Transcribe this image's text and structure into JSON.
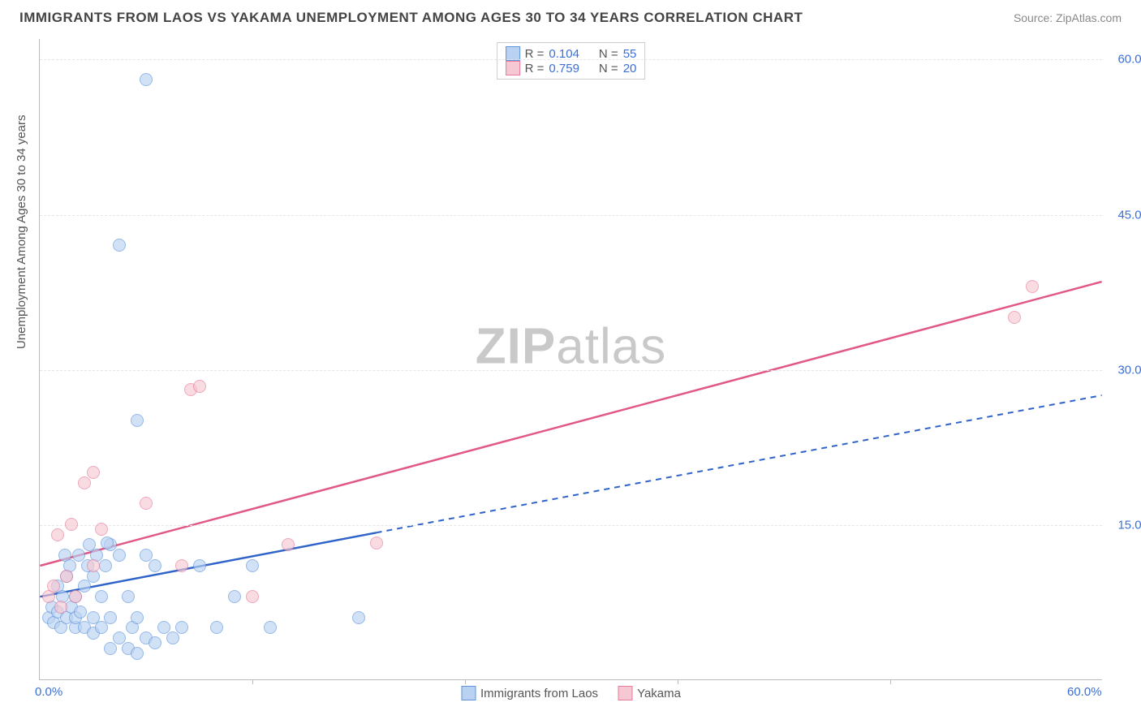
{
  "title": "IMMIGRANTS FROM LAOS VS YAKAMA UNEMPLOYMENT AMONG AGES 30 TO 34 YEARS CORRELATION CHART",
  "source": "Source: ZipAtlas.com",
  "ylabel": "Unemployment Among Ages 30 to 34 years",
  "watermark_bold": "ZIP",
  "watermark_rest": "atlas",
  "chart": {
    "type": "scatter",
    "xlim": [
      0,
      60
    ],
    "ylim": [
      0,
      62
    ],
    "x_ticks": [
      0,
      60
    ],
    "x_tick_labels": [
      "0.0%",
      "60.0%"
    ],
    "y_ticks": [
      15,
      30,
      45,
      60
    ],
    "y_tick_labels": [
      "15.0%",
      "30.0%",
      "45.0%",
      "60.0%"
    ],
    "grid_y": [
      15,
      30,
      45,
      60
    ],
    "minor_x_ticks": [
      12,
      24,
      36,
      48
    ],
    "background_color": "#ffffff",
    "grid_color": "#e5e5e5",
    "axis_color": "#bbbbbb",
    "tick_label_color": "#3b6fd6",
    "series": [
      {
        "name": "Immigrants from Laos",
        "fill": "#b9d2f2",
        "stroke": "#5f94dd",
        "marker_radius": 8,
        "fill_opacity": 0.65,
        "r": "0.104",
        "n": "55",
        "trend": {
          "x1": 0,
          "y1": 8,
          "x2": 19,
          "y2": 14.2,
          "dash_x2": 60,
          "dash_y2": 27.5,
          "color": "#2f63c9",
          "width": 2.5
        },
        "points": [
          [
            0.5,
            6
          ],
          [
            0.7,
            7
          ],
          [
            0.8,
            5.5
          ],
          [
            1,
            6.5
          ],
          [
            1,
            9
          ],
          [
            1.2,
            5
          ],
          [
            1.3,
            8
          ],
          [
            1.4,
            12
          ],
          [
            1.5,
            6
          ],
          [
            1.5,
            10
          ],
          [
            1.7,
            11
          ],
          [
            1.8,
            7
          ],
          [
            2,
            5
          ],
          [
            2,
            6
          ],
          [
            2,
            8
          ],
          [
            2.2,
            12
          ],
          [
            2.3,
            6.5
          ],
          [
            2.5,
            5
          ],
          [
            2.5,
            9
          ],
          [
            2.7,
            11
          ],
          [
            3,
            4.5
          ],
          [
            3,
            6
          ],
          [
            3,
            10
          ],
          [
            3.2,
            12
          ],
          [
            3.5,
            5
          ],
          [
            3.5,
            8
          ],
          [
            3.7,
            11
          ],
          [
            4,
            3
          ],
          [
            4,
            6
          ],
          [
            4.5,
            4
          ],
          [
            4.5,
            12
          ],
          [
            5,
            3
          ],
          [
            5,
            8
          ],
          [
            5.2,
            5
          ],
          [
            5.5,
            2.5
          ],
          [
            5.5,
            6
          ],
          [
            6,
            4
          ],
          [
            6,
            12
          ],
          [
            6.5,
            3.5
          ],
          [
            6.5,
            11
          ],
          [
            7,
            5
          ],
          [
            7.5,
            4
          ],
          [
            8,
            5
          ],
          [
            9,
            11
          ],
          [
            10,
            5
          ],
          [
            11,
            8
          ],
          [
            12,
            11
          ],
          [
            13,
            5
          ],
          [
            18,
            6
          ],
          [
            4.5,
            42
          ],
          [
            6,
            58
          ],
          [
            5.5,
            25
          ],
          [
            4,
            13
          ],
          [
            3.8,
            13.2
          ],
          [
            2.8,
            13
          ]
        ]
      },
      {
        "name": "Yakama",
        "fill": "#f6c8d3",
        "stroke": "#e77a9a",
        "marker_radius": 8,
        "fill_opacity": 0.65,
        "r": "0.759",
        "n": "20",
        "trend": {
          "x1": 0,
          "y1": 11,
          "x2": 60,
          "y2": 38.5,
          "color": "#e25884",
          "width": 2.5
        },
        "points": [
          [
            0.5,
            8
          ],
          [
            0.8,
            9
          ],
          [
            1,
            14
          ],
          [
            1.2,
            7
          ],
          [
            1.5,
            10
          ],
          [
            1.8,
            15
          ],
          [
            2,
            8
          ],
          [
            2.5,
            19
          ],
          [
            3,
            20
          ],
          [
            3.5,
            14.5
          ],
          [
            3,
            11
          ],
          [
            6,
            17
          ],
          [
            8,
            11
          ],
          [
            8.5,
            28
          ],
          [
            9,
            28.3
          ],
          [
            12,
            8
          ],
          [
            14,
            13
          ],
          [
            19,
            13.2
          ],
          [
            55,
            35
          ],
          [
            56,
            38
          ]
        ]
      }
    ],
    "stats_labels": {
      "r": "R =",
      "n": "N ="
    }
  },
  "legend": {
    "series1": "Immigrants from Laos",
    "series2": "Yakama"
  }
}
